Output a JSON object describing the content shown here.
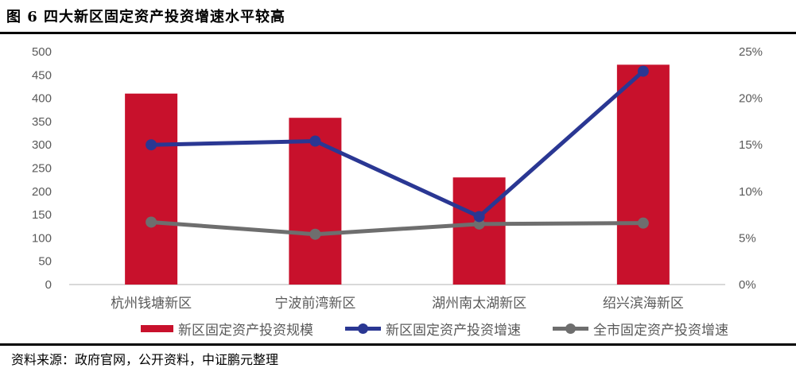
{
  "title": "图 6 四大新区固定资产投资增速水平较高",
  "source": "资料来源：政府官网，公开资料，中证鹏元整理",
  "colors": {
    "bar": "#C8112C",
    "line_new_district": "#2A3793",
    "line_city": "#6E6E6E",
    "axis_line": "#D9D9D9",
    "tick_text": "#595959"
  },
  "chart_data": {
    "type": "bar",
    "subtype": "bar-line-combo",
    "categories": [
      "杭州钱塘新区",
      "宁波前湾新区",
      "湖州南太湖新区",
      "绍兴滨海新区"
    ],
    "series": [
      {
        "name": "新区固定资产投资规模",
        "type": "bar",
        "axis": "left",
        "color_key": "bar",
        "values": [
          410,
          358,
          230,
          472
        ]
      },
      {
        "name": "新区固定资产投资增速",
        "type": "line",
        "axis": "right",
        "color_key": "line_new_district",
        "values": [
          15.0,
          15.4,
          7.3,
          22.9
        ]
      },
      {
        "name": "全市固定资产投资增速",
        "type": "line",
        "axis": "right",
        "color_key": "line_city",
        "values": [
          6.7,
          5.4,
          6.5,
          6.6
        ]
      }
    ],
    "left_axis": {
      "min": 0,
      "max": 500,
      "ticks": [
        0,
        50,
        100,
        150,
        200,
        250,
        300,
        350,
        400,
        450,
        500
      ]
    },
    "right_axis": {
      "min": 0,
      "max": 25,
      "tick_values": [
        0,
        5,
        10,
        15,
        20,
        25
      ],
      "tick_labels": [
        "0%",
        "5%",
        "10%",
        "15%",
        "20%",
        "25%"
      ],
      "unit": "%"
    },
    "grid": false,
    "legend_position": "bottom"
  }
}
